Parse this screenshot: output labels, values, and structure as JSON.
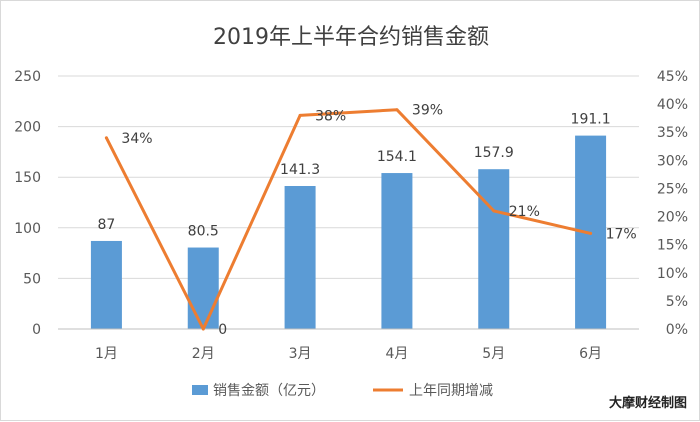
{
  "chart_data": {
    "type": "bar",
    "title": "2019年上半年合约销售金额",
    "categories": [
      "1月",
      "2月",
      "3月",
      "4月",
      "5月",
      "6月"
    ],
    "series": [
      {
        "name": "销售金额（亿元）",
        "type": "bar",
        "axis": "left",
        "color": "#5b9bd5",
        "values": [
          87,
          80.5,
          141.3,
          154.1,
          157.9,
          191.1
        ],
        "labels": [
          "87",
          "80.5",
          "141.3",
          "154.1",
          "157.9",
          "191.1"
        ]
      },
      {
        "name": "上年同期增减",
        "type": "line",
        "axis": "right",
        "color": "#ed7d31",
        "values": [
          34,
          0,
          38,
          39,
          21,
          17
        ],
        "labels": [
          "34%",
          "0",
          "38%",
          "39%",
          "21%",
          "17%"
        ]
      }
    ],
    "y_left": {
      "min": 0,
      "max": 250,
      "step": 50,
      "ticks": [
        "0",
        "50",
        "100",
        "150",
        "200",
        "250"
      ]
    },
    "y_right": {
      "min": 0,
      "max": 45,
      "step": 5,
      "ticks": [
        "0%",
        "5%",
        "10%",
        "15%",
        "20%",
        "25%",
        "30%",
        "35%",
        "40%",
        "45%"
      ]
    },
    "grid": true,
    "legend_position": "bottom"
  },
  "watermark": "大摩财经制图",
  "colors": {
    "grid": "#d9d9d9",
    "text": "#595959"
  }
}
